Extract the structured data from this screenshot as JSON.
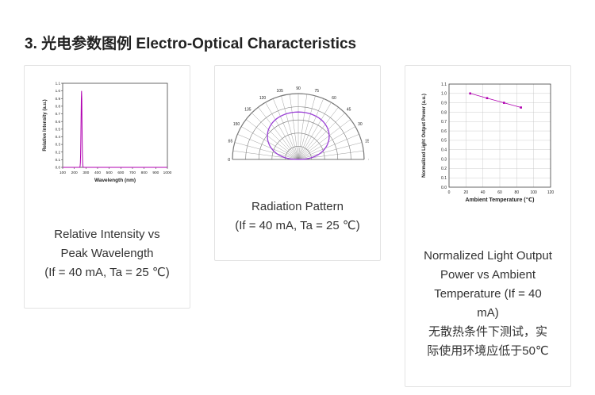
{
  "section_title": "3. 光电参数图例 Electro-Optical Characteristics",
  "cards": [
    {
      "caption_lines": [
        "Relative Intensity vs",
        "Peak Wavelength",
        "(If = 40 mA, Ta = 25 ℃)"
      ],
      "chart": {
        "type": "line",
        "xlabel": "Wavelength (nm)",
        "ylabel": "Relative Intensity (a.u.)",
        "x_ticks": [
          "100",
          "200",
          "300",
          "400",
          "500",
          "600",
          "700",
          "800",
          "900",
          "1000"
        ],
        "y_ticks": [
          "0.0",
          "0.1",
          "0.2",
          "0.3",
          "0.4",
          "0.5",
          "0.6",
          "0.7",
          "0.8",
          "0.9",
          "1.0",
          "1.1"
        ],
        "xlim": [
          100,
          1000
        ],
        "ylim": [
          0,
          1.1
        ],
        "peak_nm": 262,
        "line_color": "#b000b0"
      }
    },
    {
      "caption_lines": [
        "Radiation Pattern",
        "(If = 40 mA, Ta = 25 ℃)"
      ],
      "chart": {
        "type": "polar",
        "angle_labels": [
          "0",
          "15",
          "30",
          "45",
          "60",
          "75",
          "90",
          "105",
          "120",
          "135",
          "150",
          "165",
          "180"
        ],
        "line_color": "#9a3fd6"
      }
    },
    {
      "caption_lines": [
        "Normalized Light Output",
        "Power vs Ambient",
        "Temperature (If = 40",
        "mA)",
        "无散热条件下测试，实",
        "际使用环境应低于50℃"
      ],
      "chart": {
        "type": "line",
        "xlabel": "Ambient Temperature (℃)",
        "ylabel": "Normalized Light Output Power (a.u.)",
        "x_ticks": [
          "0",
          "20",
          "40",
          "60",
          "80",
          "100",
          "120"
        ],
        "y_ticks": [
          "0.0",
          "0.1",
          "0.2",
          "0.3",
          "0.4",
          "0.5",
          "0.6",
          "0.7",
          "0.8",
          "0.9",
          "1.0",
          "1.1"
        ],
        "xlim": [
          0,
          120
        ],
        "ylim": [
          0,
          1.1
        ],
        "points": [
          [
            25,
            1.0
          ],
          [
            45,
            0.95
          ],
          [
            65,
            0.9
          ],
          [
            85,
            0.85
          ]
        ],
        "line_color": "#b000b0"
      }
    }
  ]
}
